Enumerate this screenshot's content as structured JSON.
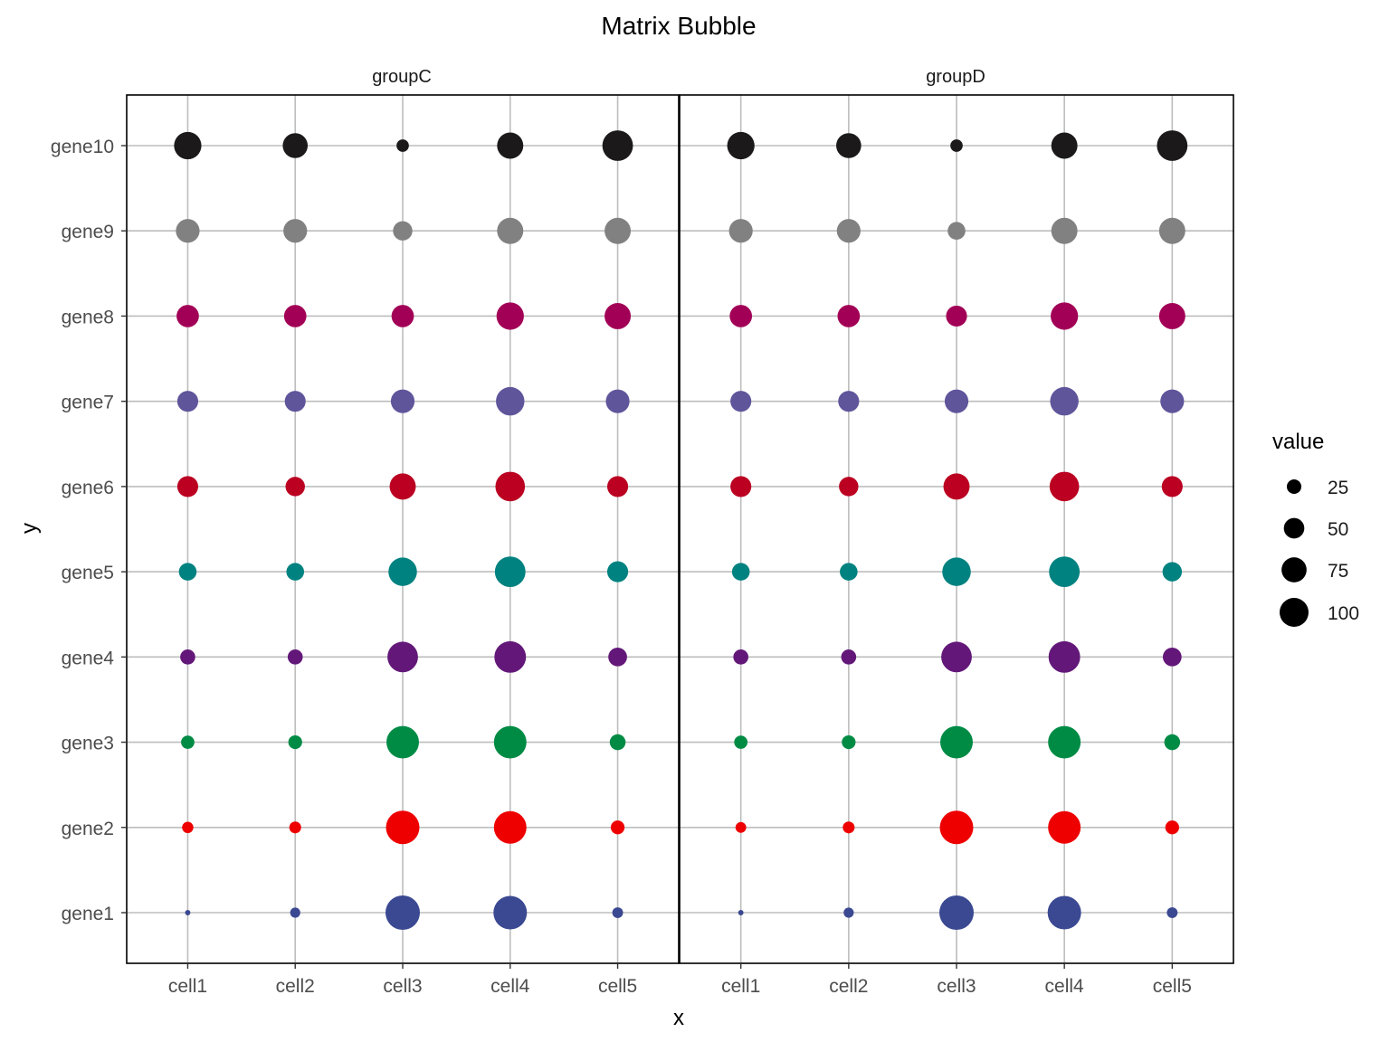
{
  "chart_data": {
    "type": "scatter",
    "title": "Matrix Bubble",
    "xlabel": "x",
    "ylabel": "y",
    "facets": [
      "groupC",
      "groupD"
    ],
    "categories_x": [
      "cell1",
      "cell2",
      "cell3",
      "cell4",
      "cell5"
    ],
    "categories_y": [
      "gene1",
      "gene2",
      "gene3",
      "gene4",
      "gene5",
      "gene6",
      "gene7",
      "gene8",
      "gene9",
      "gene10"
    ],
    "size_variable": "value",
    "size_range": [
      1,
      100
    ],
    "grid": true,
    "legend": {
      "title": "value",
      "placement": "right",
      "entries": [
        {
          "label": "25",
          "value": 25
        },
        {
          "label": "50",
          "value": 50
        },
        {
          "label": "75",
          "value": 75
        },
        {
          "label": "100",
          "value": 100
        }
      ]
    },
    "row_colors": {
      "gene1": "#3B4992",
      "gene2": "#EE0000",
      "gene3": "#008B45",
      "gene4": "#631879",
      "gene5": "#008280",
      "gene6": "#BB0021",
      "gene7": "#5F559B",
      "gene8": "#A20056",
      "gene9": "#808180",
      "gene10": "#1B1919"
    },
    "series": [
      {
        "facet": "groupC",
        "values": {
          "gene10": [
            60,
            50,
            12,
            55,
            75
          ],
          "gene9": [
            45,
            45,
            30,
            55,
            55
          ],
          "gene8": [
            40,
            40,
            40,
            60,
            55
          ],
          "gene7": [
            35,
            35,
            45,
            65,
            45
          ],
          "gene6": [
            35,
            30,
            55,
            70,
            35
          ],
          "gene5": [
            25,
            25,
            65,
            75,
            35
          ],
          "gene4": [
            18,
            18,
            75,
            80,
            28
          ],
          "gene3": [
            14,
            15,
            85,
            85,
            20
          ],
          "gene2": [
            10,
            11,
            90,
            85,
            15
          ],
          "gene1": [
            2,
            8,
            95,
            90,
            9
          ]
        }
      },
      {
        "facet": "groupD",
        "values": {
          "gene10": [
            60,
            50,
            12,
            55,
            75
          ],
          "gene9": [
            45,
            45,
            25,
            55,
            55
          ],
          "gene8": [
            40,
            40,
            35,
            60,
            55
          ],
          "gene7": [
            35,
            35,
            45,
            65,
            45
          ],
          "gene6": [
            35,
            30,
            55,
            70,
            35
          ],
          "gene5": [
            25,
            25,
            65,
            75,
            30
          ],
          "gene4": [
            18,
            18,
            75,
            80,
            28
          ],
          "gene3": [
            14,
            15,
            85,
            85,
            20
          ],
          "gene2": [
            9,
            11,
            90,
            85,
            15
          ],
          "gene1": [
            2,
            8,
            95,
            90,
            9
          ]
        }
      }
    ]
  }
}
